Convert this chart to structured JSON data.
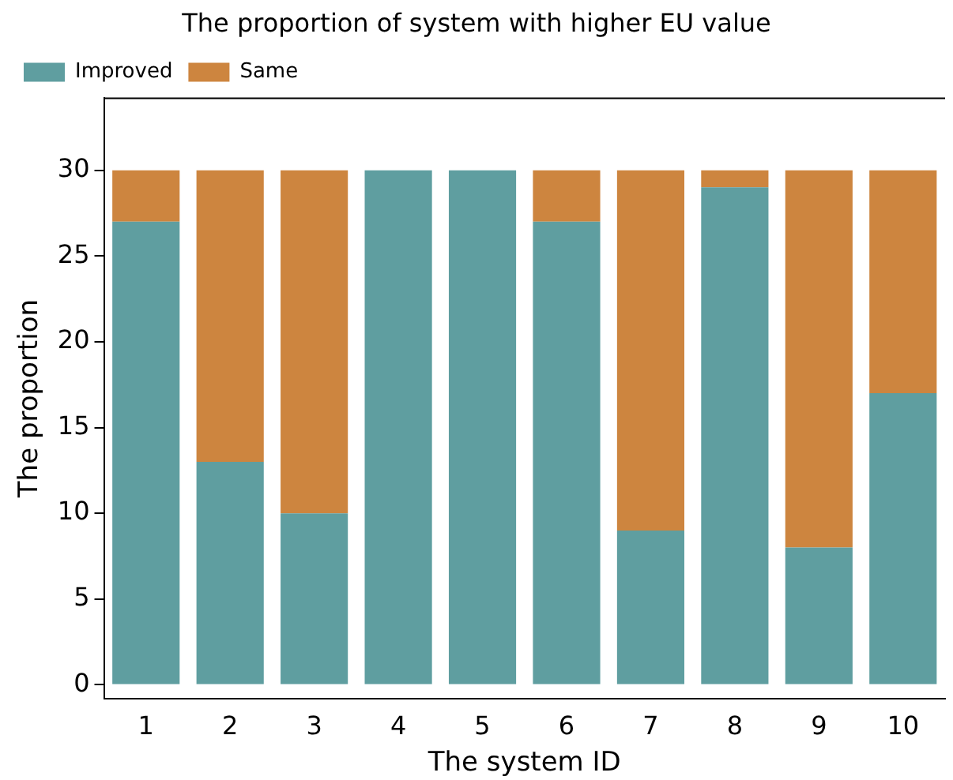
{
  "chart_data": {
    "type": "bar",
    "title": "The proportion of system with higher EU value",
    "xlabel": "The system ID",
    "ylabel": "The proportion",
    "categories": [
      "1",
      "2",
      "3",
      "4",
      "5",
      "6",
      "7",
      "8",
      "9",
      "10"
    ],
    "series": [
      {
        "name": "Improved",
        "color": "#5f9ea0",
        "values": [
          27,
          13,
          10,
          30,
          30,
          27,
          9,
          29,
          8,
          17
        ]
      },
      {
        "name": "Same",
        "color": "#cd853f",
        "values": [
          3,
          17,
          20,
          0,
          0,
          3,
          21,
          1,
          22,
          13
        ]
      }
    ],
    "stacked": true,
    "ylim": [
      -0.8,
      34.2
    ],
    "yticks": [
      0,
      5,
      10,
      15,
      20,
      25,
      30
    ],
    "grid": false,
    "legend": "top left"
  }
}
